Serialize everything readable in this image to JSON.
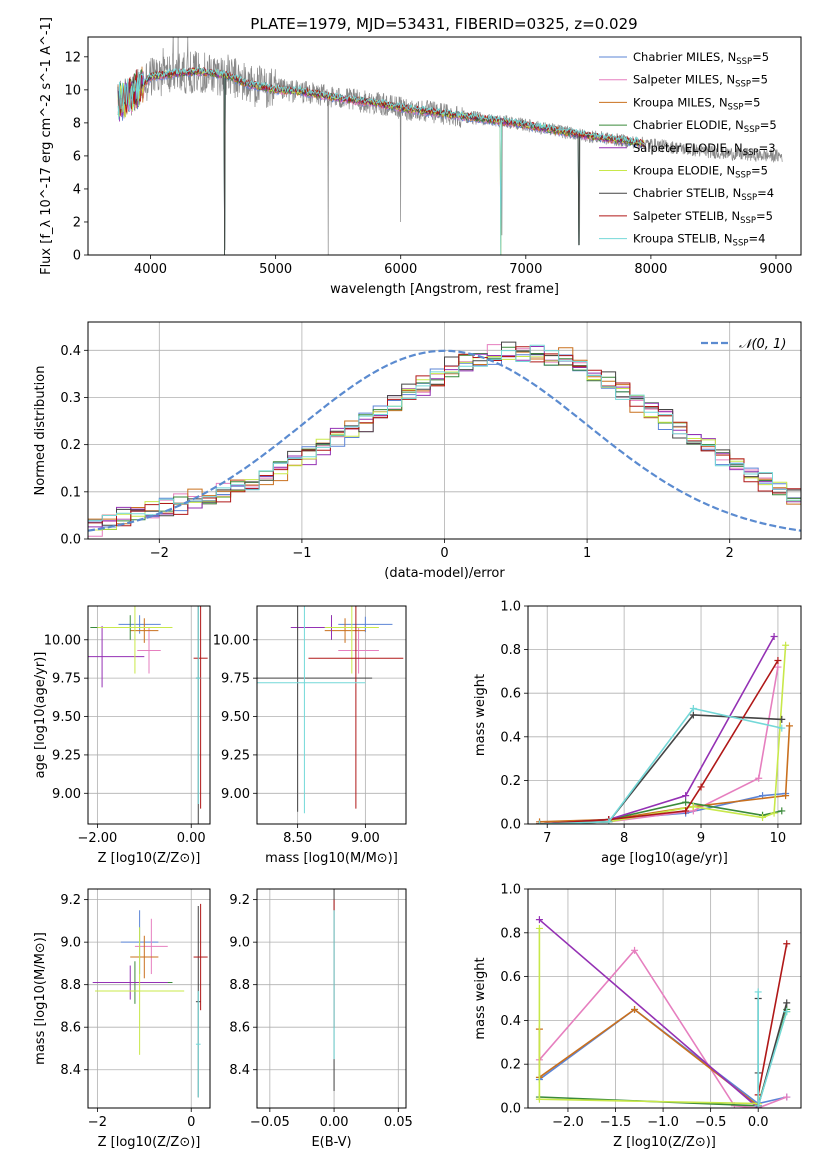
{
  "figure": {
    "title": "PLATE=1979, MJD=53431, FIBERID=0325, z=0.029"
  },
  "colors": {
    "Chabrier MILES": "#5b84d6",
    "Salpeter MILES": "#e67fbf",
    "Kroupa MILES": "#c9701e",
    "Chabrier ELODIE": "#3a8a3a",
    "Salpeter ELODIE": "#9431b4",
    "Kroupa ELODIE": "#c8e84a",
    "Chabrier STELIB": "#444444",
    "Salpeter STELIB": "#b01818",
    "Kroupa STELIB": "#74d8d8",
    "data": "#888888",
    "normal_curve": "#5b8bd0"
  },
  "chart_data": [
    {
      "id": "spectrum",
      "type": "line",
      "xlabel": "wavelength [Angstrom, rest frame]",
      "ylabel": "Flux [f_λ 10^-17 erg cm^-2 s^-1 A^-1]",
      "xlim": [
        3500,
        9200
      ],
      "ylim": [
        0,
        13.2
      ],
      "xticks": [
        4000,
        5000,
        6000,
        7000,
        8000,
        9000
      ],
      "yticks": [
        0,
        2,
        4,
        6,
        8,
        10,
        12
      ],
      "legend_position": "upper-right",
      "legend": [
        {
          "model": "Chabrier MILES",
          "label": "Chabrier MILES, N",
          "sub": "SSP",
          "tail": "=5"
        },
        {
          "model": "Salpeter MILES",
          "label": "Salpeter MILES, N",
          "sub": "SSP",
          "tail": "=5"
        },
        {
          "model": "Kroupa MILES",
          "label": "Kroupa MILES, N",
          "sub": "SSP",
          "tail": "=5"
        },
        {
          "model": "Chabrier ELODIE",
          "label": "Chabrier ELODIE, N",
          "sub": "SSP",
          "tail": "=5"
        },
        {
          "model": "Salpeter ELODIE",
          "label": "Salpeter ELODIE, N",
          "sub": "SSP",
          "tail": "=3"
        },
        {
          "model": "Kroupa ELODIE",
          "label": "Kroupa ELODIE, N",
          "sub": "SSP",
          "tail": "=5"
        },
        {
          "model": "Chabrier STELIB",
          "label": "Chabrier STELIB, N",
          "sub": "SSP",
          "tail": "=4"
        },
        {
          "model": "Salpeter STELIB",
          "label": "Salpeter STELIB, N",
          "sub": "SSP",
          "tail": "=5"
        },
        {
          "model": "Kroupa STELIB",
          "label": "Kroupa STELIB, N",
          "sub": "SSP",
          "tail": "=4"
        }
      ],
      "continuum": [
        [
          3740,
          9.2
        ],
        [
          3900,
          10.0
        ],
        [
          4000,
          10.8
        ],
        [
          4200,
          11.0
        ],
        [
          4400,
          11.1
        ],
        [
          4600,
          10.9
        ],
        [
          4800,
          10.3
        ],
        [
          5000,
          10.0
        ],
        [
          5200,
          9.9
        ],
        [
          5500,
          9.5
        ],
        [
          5800,
          9.2
        ],
        [
          6000,
          8.9
        ],
        [
          6300,
          8.6
        ],
        [
          6600,
          8.3
        ],
        [
          6900,
          8.0
        ],
        [
          7200,
          7.6
        ],
        [
          7500,
          7.2
        ],
        [
          7800,
          6.9
        ],
        [
          8100,
          6.6
        ],
        [
          8400,
          6.3
        ],
        [
          8700,
          6.1
        ],
        [
          9000,
          6.0
        ]
      ],
      "data_range": [
        3740,
        9050
      ],
      "model_range": [
        3740,
        7950
      ],
      "data_dropouts": [
        [
          4595,
          0.3
        ],
        [
          5420,
          0
        ],
        [
          6000,
          2.0
        ],
        [
          6810,
          1.2
        ],
        [
          7430,
          0.6
        ]
      ],
      "model_dropouts": [
        [
          3905,
          0
        ],
        [
          4590,
          0
        ],
        [
          6800,
          0
        ],
        [
          7425,
          0.6
        ]
      ]
    },
    {
      "id": "residual-histogram",
      "type": "step",
      "xlabel": "(data-model)/error",
      "ylabel": "Normed distribution",
      "xlim": [
        -2.5,
        2.5
      ],
      "ylim": [
        0,
        0.46
      ],
      "xticks": [
        -2,
        -1,
        0,
        1,
        2
      ],
      "yticks": [
        0.0,
        0.1,
        0.2,
        0.3,
        0.4
      ],
      "bin_width": 0.1,
      "bin_start": -2.5,
      "reference_curve": {
        "label": "𝒩(0, 1)",
        "mean": 0,
        "sigma": 1
      },
      "base_values": [
        0.029,
        0.034,
        0.046,
        0.054,
        0.062,
        0.069,
        0.074,
        0.081,
        0.088,
        0.097,
        0.108,
        0.12,
        0.134,
        0.149,
        0.164,
        0.181,
        0.198,
        0.216,
        0.233,
        0.25,
        0.268,
        0.287,
        0.306,
        0.326,
        0.345,
        0.36,
        0.372,
        0.381,
        0.388,
        0.392,
        0.395,
        0.392,
        0.386,
        0.376,
        0.364,
        0.349,
        0.33,
        0.312,
        0.293,
        0.273,
        0.253,
        0.233,
        0.213,
        0.193,
        0.174,
        0.157,
        0.14,
        0.124,
        0.11,
        0.097,
        0.085,
        0.074,
        0.064,
        0.055,
        0.047,
        0.04,
        0.035,
        0.031,
        0.027,
        0.025,
        0.024,
        0.023,
        0.022,
        0.022,
        0.021,
        0.021,
        0.02,
        0.02,
        0.02,
        0.02
      ],
      "series_offsets": [
        0.004,
        -0.007,
        0.012,
        -0.003,
        0.009,
        0.0,
        -0.01,
        0.006,
        -0.004
      ]
    },
    {
      "id": "age-vs-Z",
      "type": "errorbar",
      "xlabel": "Z [log10(Z/Z⊙)]",
      "ylabel": "age  [log10(age/yr)]",
      "xlim": [
        -2.2,
        0.4
      ],
      "ylim": [
        8.8,
        10.22
      ],
      "xticks": [
        -2,
        0
      ],
      "yticks": [
        9.0,
        9.25,
        9.5,
        9.75,
        10.0
      ],
      "points": [
        {
          "model": "Chabrier MILES",
          "x": -1.1,
          "xerr": 0.45,
          "y": 10.1,
          "yerr": 0.06
        },
        {
          "model": "Salpeter MILES",
          "x": -0.9,
          "xerr": 0.25,
          "y": 9.93,
          "yerr": 0.15
        },
        {
          "model": "Kroupa MILES",
          "x": -1.0,
          "xerr": 0.3,
          "y": 10.06,
          "yerr": 0.08
        },
        {
          "model": "Chabrier ELODIE",
          "x": -1.3,
          "xerr": 0.85,
          "y": 10.08,
          "yerr": 0.08
        },
        {
          "model": "Salpeter ELODIE",
          "x": -1.9,
          "xerr": 0.9,
          "y": 9.89,
          "yerr": 0.2
        },
        {
          "model": "Kroupa ELODIE",
          "x": -1.2,
          "xerr": 0.8,
          "y": 10.08,
          "yerr": 0.3
        },
        {
          "model": "Chabrier STELIB",
          "x": 0.15,
          "xerr": 0.05,
          "y": 9.75,
          "yerr": 0.95
        },
        {
          "model": "Salpeter STELIB",
          "x": 0.2,
          "xerr": 0.15,
          "y": 9.88,
          "yerr": 0.98
        },
        {
          "model": "Kroupa STELIB",
          "x": 0.15,
          "xerr": 0.05,
          "y": 9.75,
          "yerr": 0.82
        }
      ]
    },
    {
      "id": "age-vs-mass",
      "type": "errorbar",
      "xlabel": "mass [log10(M/M⊙)]",
      "ylabel": "",
      "xlim": [
        8.2,
        9.3
      ],
      "ylim": [
        8.8,
        10.22
      ],
      "xticks": [
        8.5,
        9.0
      ],
      "yticks": [
        9.0,
        9.25,
        9.5,
        9.75,
        10.0
      ],
      "points": [
        {
          "model": "Chabrier MILES",
          "x": 9.0,
          "xerr": 0.2,
          "y": 10.1,
          "yerr": 0.05
        },
        {
          "model": "Salpeter MILES",
          "x": 8.95,
          "xerr": 0.15,
          "y": 9.93,
          "yerr": 0.15
        },
        {
          "model": "Kroupa MILES",
          "x": 8.85,
          "xerr": 0.15,
          "y": 10.06,
          "yerr": 0.08
        },
        {
          "model": "Chabrier ELODIE",
          "x": 8.75,
          "xerr": 0.3,
          "y": 10.08,
          "yerr": 0.08
        },
        {
          "model": "Salpeter ELODIE",
          "x": 8.75,
          "xerr": 0.3,
          "y": 10.08,
          "yerr": 0.08
        },
        {
          "model": "Kroupa ELODIE",
          "x": 8.9,
          "xerr": 0.2,
          "y": 10.08,
          "yerr": 0.3
        },
        {
          "model": "Chabrier STELIB",
          "x": 8.5,
          "xerr": 0.55,
          "y": 9.75,
          "yerr": 0.87
        },
        {
          "model": "Salpeter STELIB",
          "x": 8.93,
          "xerr": 0.35,
          "y": 9.88,
          "yerr": 0.98
        },
        {
          "model": "Kroupa STELIB",
          "x": 8.55,
          "xerr": 0.45,
          "y": 9.72,
          "yerr": 0.85
        }
      ]
    },
    {
      "id": "weight-vs-age",
      "type": "line",
      "xlabel": "age  [log10(age/yr)]",
      "ylabel": "mass weight",
      "xlim": [
        6.75,
        10.3
      ],
      "ylim": [
        0,
        1.0
      ],
      "xticks": [
        7,
        8,
        9,
        10
      ],
      "yticks": [
        0.0,
        0.2,
        0.4,
        0.6,
        0.8,
        1.0
      ],
      "series": [
        {
          "model": "Chabrier MILES",
          "x": [
            6.9,
            7.8,
            8.8,
            9.8,
            10.1
          ],
          "y": [
            0.0,
            0.02,
            0.05,
            0.13,
            0.14
          ]
        },
        {
          "model": "Salpeter MILES",
          "x": [
            6.9,
            7.8,
            8.9,
            9.75,
            10.0
          ],
          "y": [
            0.0,
            0.01,
            0.06,
            0.21,
            0.72
          ]
        },
        {
          "model": "Kroupa MILES",
          "x": [
            6.9,
            7.8,
            8.9,
            10.1,
            10.15
          ],
          "y": [
            0.01,
            0.02,
            0.08,
            0.13,
            0.45
          ]
        },
        {
          "model": "Chabrier ELODIE",
          "x": [
            6.9,
            7.8,
            8.8,
            9.8,
            10.05
          ],
          "y": [
            0.0,
            0.02,
            0.1,
            0.04,
            0.06
          ]
        },
        {
          "model": "Salpeter ELODIE",
          "x": [
            6.9,
            7.8,
            8.8,
            9.95
          ],
          "y": [
            0.0,
            0.02,
            0.13,
            0.86
          ]
        },
        {
          "model": "Kroupa ELODIE",
          "x": [
            6.9,
            7.8,
            8.9,
            9.8,
            9.95,
            10.1
          ],
          "y": [
            0.0,
            0.01,
            0.08,
            0.03,
            0.05,
            0.82
          ]
        },
        {
          "model": "Chabrier STELIB",
          "x": [
            6.9,
            7.8,
            8.9,
            10.05
          ],
          "y": [
            0.0,
            0.01,
            0.5,
            0.48
          ]
        },
        {
          "model": "Salpeter STELIB",
          "x": [
            6.9,
            7.8,
            8.8,
            9.0,
            10.0
          ],
          "y": [
            0.0,
            0.02,
            0.06,
            0.17,
            0.75
          ]
        },
        {
          "model": "Kroupa STELIB",
          "x": [
            6.9,
            7.8,
            8.9,
            10.05
          ],
          "y": [
            0.0,
            0.01,
            0.53,
            0.44
          ]
        }
      ]
    },
    {
      "id": "mass-vs-Z",
      "type": "errorbar",
      "xlabel": "Z [log10(Z/Z⊙)]",
      "ylabel": "mass [log10(M/M⊙)]",
      "xlim": [
        -2.2,
        0.4
      ],
      "ylim": [
        8.22,
        9.25
      ],
      "xticks": [
        -2,
        0
      ],
      "yticks": [
        8.4,
        8.6,
        8.8,
        9.0,
        9.2
      ],
      "points": [
        {
          "model": "Chabrier MILES",
          "x": -1.1,
          "xerr": 0.4,
          "y": 9.0,
          "yerr": 0.15
        },
        {
          "model": "Salpeter MILES",
          "x": -0.85,
          "xerr": 0.35,
          "y": 8.98,
          "yerr": 0.13
        },
        {
          "model": "Kroupa MILES",
          "x": -1.0,
          "xerr": 0.3,
          "y": 8.93,
          "yerr": 0.1
        },
        {
          "model": "Chabrier ELODIE",
          "x": -1.2,
          "xerr": 0.8,
          "y": 8.81,
          "yerr": 0.1
        },
        {
          "model": "Salpeter ELODIE",
          "x": -1.3,
          "xerr": 0.8,
          "y": 8.81,
          "yerr": 0.08
        },
        {
          "model": "Kroupa ELODIE",
          "x": -1.1,
          "xerr": 0.95,
          "y": 8.77,
          "yerr": 0.3
        },
        {
          "model": "Chabrier STELIB",
          "x": 0.15,
          "xerr": 0.05,
          "y": 8.72,
          "yerr": 0.45
        },
        {
          "model": "Salpeter STELIB",
          "x": 0.2,
          "xerr": 0.15,
          "y": 8.93,
          "yerr": 0.25
        },
        {
          "model": "Kroupa STELIB",
          "x": 0.15,
          "xerr": 0.05,
          "y": 8.52,
          "yerr": 0.25
        }
      ]
    },
    {
      "id": "mass-vs-EBV",
      "type": "errorbar",
      "xlabel": "E(B-V)",
      "ylabel": "",
      "xlim": [
        -0.06,
        0.056
      ],
      "ylim": [
        8.22,
        9.25
      ],
      "xticks": [
        -0.05,
        0.0,
        0.05
      ],
      "yticks": [
        8.4,
        8.6,
        8.8,
        9.0,
        9.2
      ],
      "points": [
        {
          "model": "Chabrier STELIB",
          "x": 0.0,
          "xerr": 0.0,
          "y": 8.8,
          "yerr": 0.5
        },
        {
          "model": "Salpeter STELIB",
          "x": 0.0,
          "xerr": 0.0,
          "y": 8.9,
          "yerr": 0.3
        },
        {
          "model": "Kroupa STELIB",
          "x": 0.0,
          "xerr": 0.0,
          "y": 8.8,
          "yerr": 0.35
        }
      ]
    },
    {
      "id": "weight-vs-Z",
      "type": "line",
      "xlabel": "Z [log10(Z/Z⊙)]",
      "ylabel": "mass weight",
      "xlim": [
        -2.42,
        0.45
      ],
      "ylim": [
        0,
        1.0
      ],
      "xticks": [
        -2.0,
        -1.5,
        -1.0,
        -0.5,
        0.0
      ],
      "yticks": [
        0.0,
        0.2,
        0.4,
        0.6,
        0.8,
        1.0
      ],
      "series": [
        {
          "model": "Chabrier MILES",
          "x": [
            -2.3,
            -1.3,
            0.0,
            0.3
          ],
          "y": [
            0.13,
            0.45,
            0.02,
            0.05
          ]
        },
        {
          "model": "Salpeter MILES",
          "x": [
            -2.3,
            -1.3,
            -0.25,
            0.0,
            0.3
          ],
          "y": [
            0.22,
            0.72,
            0.01,
            0.0,
            0.05
          ]
        },
        {
          "model": "Kroupa MILES",
          "x": [
            -2.3,
            -2.3,
            -1.3,
            0.0
          ],
          "y": [
            0.36,
            0.14,
            0.45,
            0.01
          ]
        },
        {
          "model": "Chabrier ELODIE",
          "x": [
            -2.3,
            0.0,
            0.3
          ],
          "y": [
            0.05,
            0.01,
            0.45
          ]
        },
        {
          "model": "Salpeter ELODIE",
          "x": [
            -2.3,
            0.0
          ],
          "y": [
            0.86,
            0.0
          ]
        },
        {
          "model": "Kroupa ELODIE",
          "x": [
            -2.3,
            -2.3,
            0.0,
            0.3
          ],
          "y": [
            0.82,
            0.04,
            0.02,
            0.44
          ]
        },
        {
          "model": "Chabrier STELIB",
          "x": [
            0.0,
            0.0,
            0.0,
            0.3
          ],
          "y": [
            0.5,
            0.16,
            0.01,
            0.48
          ]
        },
        {
          "model": "Salpeter STELIB",
          "x": [
            0.0,
            0.0,
            0.3
          ],
          "y": [
            0.0,
            0.06,
            0.75
          ]
        },
        {
          "model": "Kroupa STELIB",
          "x": [
            0.0,
            0.0,
            0.3
          ],
          "y": [
            0.53,
            0.01,
            0.44
          ]
        }
      ]
    }
  ]
}
